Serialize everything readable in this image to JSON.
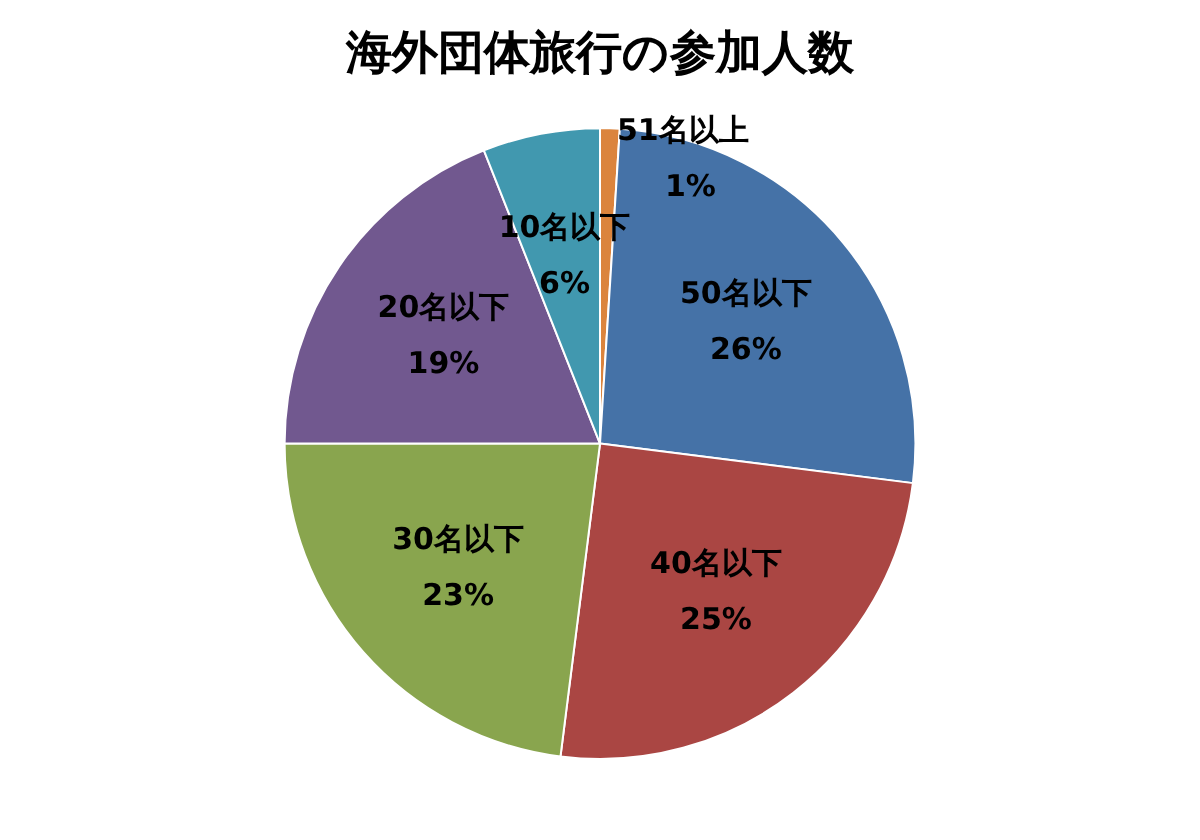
{
  "chart_data": {
    "type": "pie",
    "title": "海外団体旅行の参加人数",
    "categories": [
      "51名以上",
      "50名以下",
      "40名以下",
      "30名以下",
      "20名以下",
      "10名以下"
    ],
    "values": [
      1,
      26,
      25,
      23,
      19,
      6
    ],
    "value_labels": [
      "1%",
      "26%",
      "25%",
      "23%",
      "19%",
      "6%"
    ],
    "colors": [
      "#db843d",
      "#4572a7",
      "#aa4643",
      "#89a54e",
      "#71588f",
      "#4198af"
    ],
    "legend": false
  }
}
